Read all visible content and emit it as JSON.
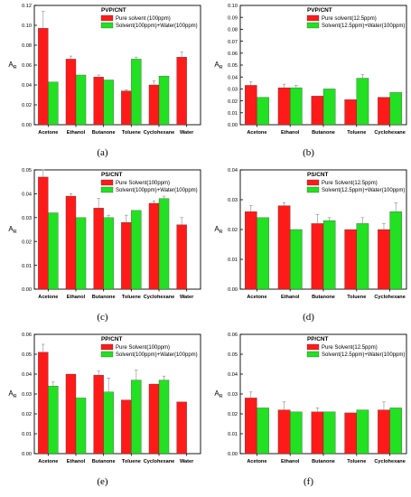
{
  "colors": {
    "series1": "#ff1a1a",
    "series2": "#22e022",
    "axis": "#000000"
  },
  "chart_data": [
    {
      "type": "bar",
      "panel_label": "(a)",
      "title": "PVP/CNT",
      "ylabel": "A_R",
      "categories": [
        "Acetone",
        "Ethanol",
        "Butanone",
        "Toluene",
        "Cyclohexane",
        "Water"
      ],
      "series": [
        {
          "name": "Pure solvent (100ppm)",
          "values": [
            0.097,
            0.066,
            0.048,
            0.034,
            0.04,
            0.068
          ],
          "errors": [
            0.017,
            0.003,
            0.002,
            0.001,
            0.004,
            0.005
          ]
        },
        {
          "name": "Solvent(100ppm)+Water(100ppm)",
          "values": [
            0.043,
            0.05,
            0.045,
            0.066,
            0.049,
            null
          ],
          "errors": [
            0.0,
            0.0,
            0.0,
            0.002,
            0.0,
            null
          ]
        }
      ],
      "ylim": [
        0,
        0.12
      ],
      "yticks": [
        "0.00",
        "0.02",
        "0.04",
        "0.06",
        "0.08",
        "0.10",
        "0.12"
      ],
      "legend": "top-right"
    },
    {
      "type": "bar",
      "panel_label": "(b)",
      "title": "PVP/CNT",
      "ylabel": "A_R",
      "categories": [
        "Acetone",
        "Ethanol",
        "Butanone",
        "Toluene",
        "Cyclohexane"
      ],
      "series": [
        {
          "name": "Pure solvent(12.5ppm)",
          "values": [
            0.033,
            0.031,
            0.024,
            0.021,
            0.023
          ],
          "errors": [
            0.003,
            0.003,
            0.0,
            0.0,
            0.0
          ]
        },
        {
          "name": "Solvent(12.5ppm)+Water(100ppm)",
          "values": [
            0.023,
            0.031,
            0.03,
            0.039,
            0.027
          ],
          "errors": [
            0.0,
            0.002,
            0.0,
            0.003,
            0.0
          ]
        }
      ],
      "ylim": [
        0,
        0.1
      ],
      "yticks": [
        "0.00",
        "0.01",
        "0.02",
        "0.03",
        "0.04",
        "0.05",
        "0.06",
        "0.07",
        "0.08",
        "0.09",
        "0.10"
      ],
      "legend": "top-right"
    },
    {
      "type": "bar",
      "panel_label": "(c)",
      "title": "PS/CNT",
      "ylabel": "A_R",
      "categories": [
        "Acetone",
        "Ethanol",
        "Butanone",
        "Toluene",
        "Cyclohexane",
        "Water"
      ],
      "series": [
        {
          "name": "Pure Solvent(100ppm)",
          "values": [
            0.047,
            0.039,
            0.034,
            0.028,
            0.036,
            0.027
          ],
          "errors": [
            0.003,
            0.001,
            0.004,
            0.003,
            0.001,
            0.003
          ]
        },
        {
          "name": "Solvent(100ppm)+Water(100ppm)",
          "values": [
            0.032,
            0.03,
            0.03,
            0.033,
            0.038,
            null
          ],
          "errors": [
            0.0,
            0.0,
            0.001,
            0.0,
            0.001,
            null
          ]
        }
      ],
      "ylim": [
        0,
        0.05
      ],
      "yticks": [
        "0.00",
        "0.01",
        "0.02",
        "0.03",
        "0.04",
        "0.05"
      ],
      "legend": "top-right"
    },
    {
      "type": "bar",
      "panel_label": "(d)",
      "title": "PS/CNT",
      "ylabel": "A_R",
      "categories": [
        "Acetone",
        "Ethanol",
        "Butanone",
        "Toluene",
        "Cyclohexane"
      ],
      "series": [
        {
          "name": "Pure Solvent(12.5ppm)",
          "values": [
            0.026,
            0.028,
            0.022,
            0.02,
            0.02
          ],
          "errors": [
            0.002,
            0.001,
            0.003,
            0.0,
            0.002
          ]
        },
        {
          "name": "Solvent(12.5ppm)+Water(100ppm)",
          "values": [
            0.024,
            0.02,
            0.023,
            0.022,
            0.026
          ],
          "errors": [
            0.0,
            0.0,
            0.001,
            0.002,
            0.003
          ]
        }
      ],
      "ylim": [
        0,
        0.04
      ],
      "yticks": [
        "0.00",
        "0.01",
        "0.02",
        "0.03",
        "0.04"
      ],
      "legend": "top-right"
    },
    {
      "type": "bar",
      "panel_label": "(e)",
      "title": "PP/CNT",
      "ylabel": "A_R",
      "categories": [
        "Acetone",
        "Ethanol",
        "Butanone",
        "Toluene",
        "Cyclohexane",
        "Water"
      ],
      "series": [
        {
          "name": "Pure Solvent(100ppm)",
          "values": [
            0.051,
            0.04,
            0.0395,
            0.027,
            0.035,
            0.026
          ],
          "errors": [
            0.004,
            0.0,
            0.002,
            0.0,
            0.0,
            0.0
          ]
        },
        {
          "name": "Solvent(100ppm)+Water(100ppm)",
          "values": [
            0.034,
            0.028,
            0.031,
            0.037,
            0.037,
            null
          ],
          "errors": [
            0.002,
            0.0,
            0.007,
            0.005,
            0.002,
            null
          ]
        }
      ],
      "ylim": [
        0,
        0.06
      ],
      "yticks": [
        "0.00",
        "0.01",
        "0.02",
        "0.03",
        "0.04",
        "0.05",
        "0.06"
      ],
      "legend": "top-right"
    },
    {
      "type": "bar",
      "panel_label": "(f)",
      "title": "PP/CNT",
      "ylabel": "A_R",
      "categories": [
        "Acetone",
        "Ethanol",
        "Butanone",
        "Toluene",
        "Cyclohexane"
      ],
      "series": [
        {
          "name": "Pure Solvent(12.5ppm)",
          "values": [
            0.028,
            0.022,
            0.021,
            0.0205,
            0.022
          ],
          "errors": [
            0.003,
            0.004,
            0.002,
            0.0,
            0.004
          ]
        },
        {
          "name": "Solvent(12.5ppm)+Water(100ppm)",
          "values": [
            0.023,
            0.021,
            0.021,
            0.022,
            0.023
          ],
          "errors": [
            0.0,
            0.0,
            0.0,
            0.0,
            0.0
          ]
        }
      ],
      "ylim": [
        0,
        0.06
      ],
      "yticks": [
        "0.00",
        "0.01",
        "0.02",
        "0.03",
        "0.04",
        "0.05",
        "0.06"
      ],
      "legend": "top-right"
    }
  ]
}
